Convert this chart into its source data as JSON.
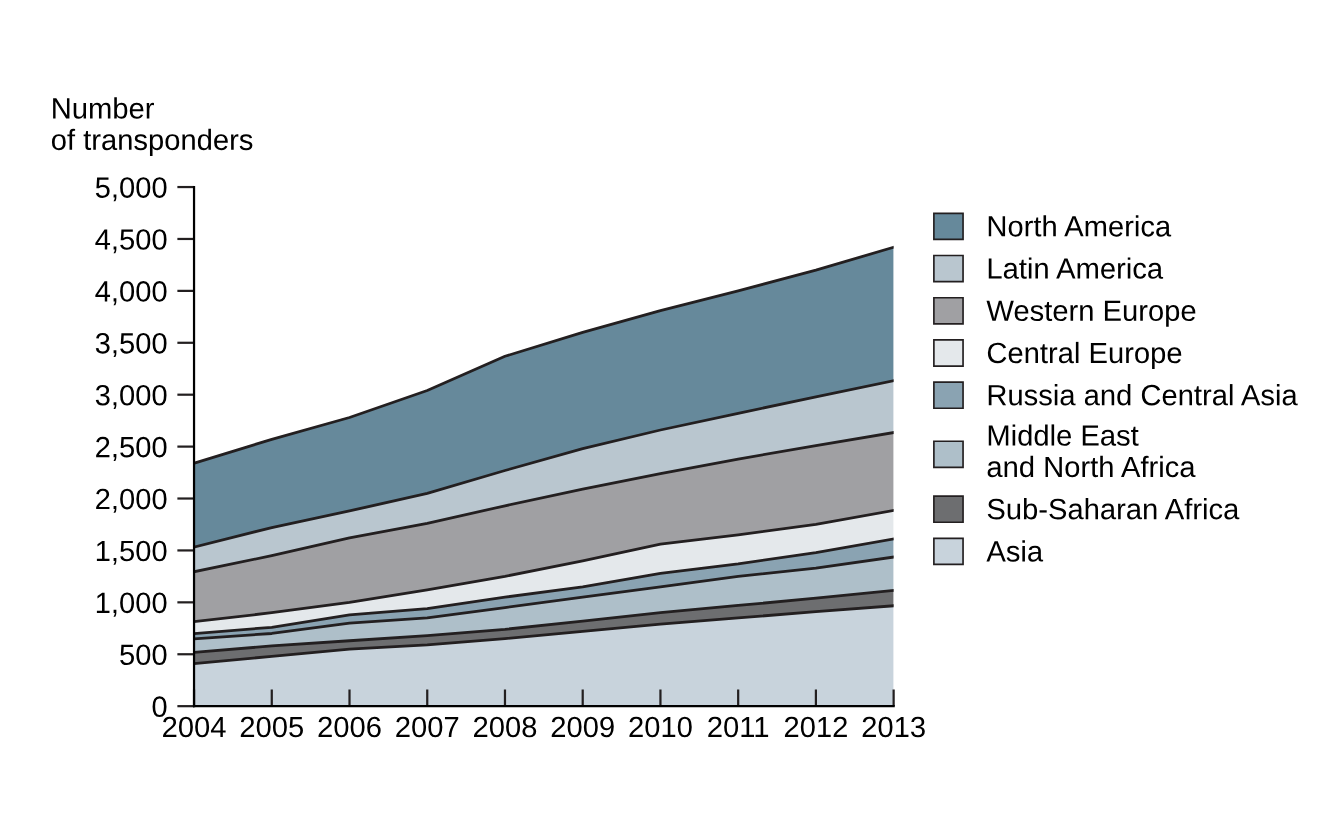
{
  "chart_data": {
    "type": "area",
    "stacked": true,
    "ylabel": "Number\nof transponders",
    "x": [
      2004,
      2005,
      2006,
      2007,
      2008,
      2009,
      2010,
      2011,
      2012,
      2013
    ],
    "xlim": [
      2004,
      2013
    ],
    "xticks": [
      2004,
      2005,
      2006,
      2007,
      2008,
      2009,
      2010,
      2011,
      2012,
      2013
    ],
    "ylim": [
      0,
      5000
    ],
    "yticks": [
      0,
      500,
      {
        "value": 1000,
        "label": "1,000"
      },
      {
        "value": 1500,
        "label": "1,500"
      },
      {
        "value": 2000,
        "label": "2,000"
      },
      {
        "value": 2500,
        "label": "2,500"
      },
      {
        "value": 3000,
        "label": "3,000"
      },
      {
        "value": 3500,
        "label": "3,500"
      },
      {
        "value": 4000,
        "label": "4,000"
      },
      {
        "value": 4500,
        "label": "4,500"
      },
      {
        "value": 5000,
        "label": "5,000"
      }
    ],
    "grid": false,
    "legend": "right",
    "series": [
      {
        "name": "Asia",
        "color": "#c8d3dc",
        "values": [
          410,
          480,
          550,
          590,
          650,
          720,
          790,
          850,
          910,
          967
        ]
      },
      {
        "name": "Sub-Saharan Africa",
        "color": "#6d6e70",
        "values": [
          109,
          100,
          80,
          90,
          90,
          100,
          110,
          120,
          130,
          148
        ]
      },
      {
        "name": "Middle East\nand North Africa",
        "color": "#aebfc9",
        "values": [
          129,
          120,
          170,
          170,
          210,
          230,
          250,
          280,
          290,
          321
        ]
      },
      {
        "name": "Russia and Central Asia",
        "color": "#8aa3b2",
        "values": [
          51,
          60,
          80,
          90,
          100,
          100,
          130,
          120,
          150,
          174
        ]
      },
      {
        "name": "Central Europe",
        "color": "#e4e8eb",
        "values": [
          115,
          140,
          120,
          180,
          200,
          250,
          280,
          280,
          270,
          275
        ]
      },
      {
        "name": "Western Europe",
        "color": "#a0a0a3",
        "values": [
          481,
          550,
          620,
          640,
          680,
          690,
          680,
          730,
          760,
          750
        ]
      },
      {
        "name": "Latin America",
        "color": "#b9c6cf",
        "values": [
          237,
          270,
          260,
          290,
          340,
          390,
          420,
          440,
          470,
          500
        ]
      },
      {
        "name": "North America",
        "color": "#66899b",
        "values": [
          808,
          850,
          900,
          990,
          1100,
          1120,
          1150,
          1180,
          1220,
          1285
        ]
      }
    ]
  }
}
